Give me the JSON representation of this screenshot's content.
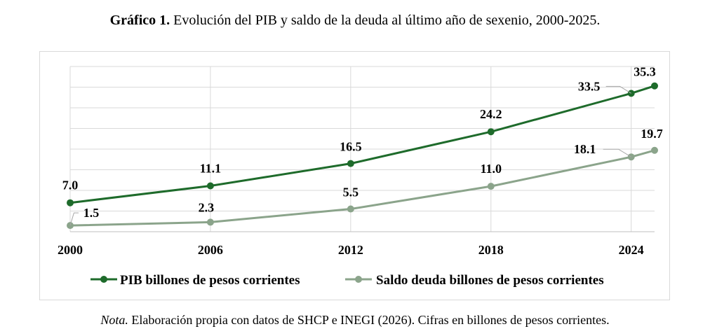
{
  "title": {
    "bold": "Gráfico 1.",
    "text": " Evolución del PIB y saldo de la deuda al último año de sexenio, 2000-2025."
  },
  "note": {
    "italic": "Nota.",
    "text": " Elaboración propia con datos de SHCP e INEGI (2026). Cifras en billones de pesos corrientes."
  },
  "colors": {
    "pib": "#1e6b2b",
    "deuda": "#8ba48b",
    "grid": "#d9d9d9",
    "frame": "#d9d9d9"
  },
  "chart_data": {
    "type": "line",
    "x": [
      2000,
      2006,
      2012,
      2018,
      2024,
      2025
    ],
    "x_tick_labels": [
      "2000",
      "2006",
      "2012",
      "2018",
      "2024"
    ],
    "xlim": [
      2000,
      2025
    ],
    "ylim": [
      0,
      40
    ],
    "ygrid_step": 5,
    "grid": true,
    "legend_position": "bottom",
    "series": [
      {
        "name": "PIB billones de pesos corrientes",
        "values": [
          7.0,
          11.1,
          16.5,
          24.2,
          33.5,
          35.3
        ],
        "labels": [
          "7.0",
          "11.1",
          "16.5",
          "24.2",
          "33.5",
          "35.3"
        ],
        "color": "#1e6b2b"
      },
      {
        "name": "Saldo deuda billones de pesos corrientes",
        "values": [
          1.5,
          2.3,
          5.5,
          11.0,
          18.1,
          19.7
        ],
        "labels": [
          "1.5",
          "2.3",
          "5.5",
          "11.0",
          "18.1",
          "19.7"
        ],
        "color": "#8ba48b"
      }
    ]
  }
}
